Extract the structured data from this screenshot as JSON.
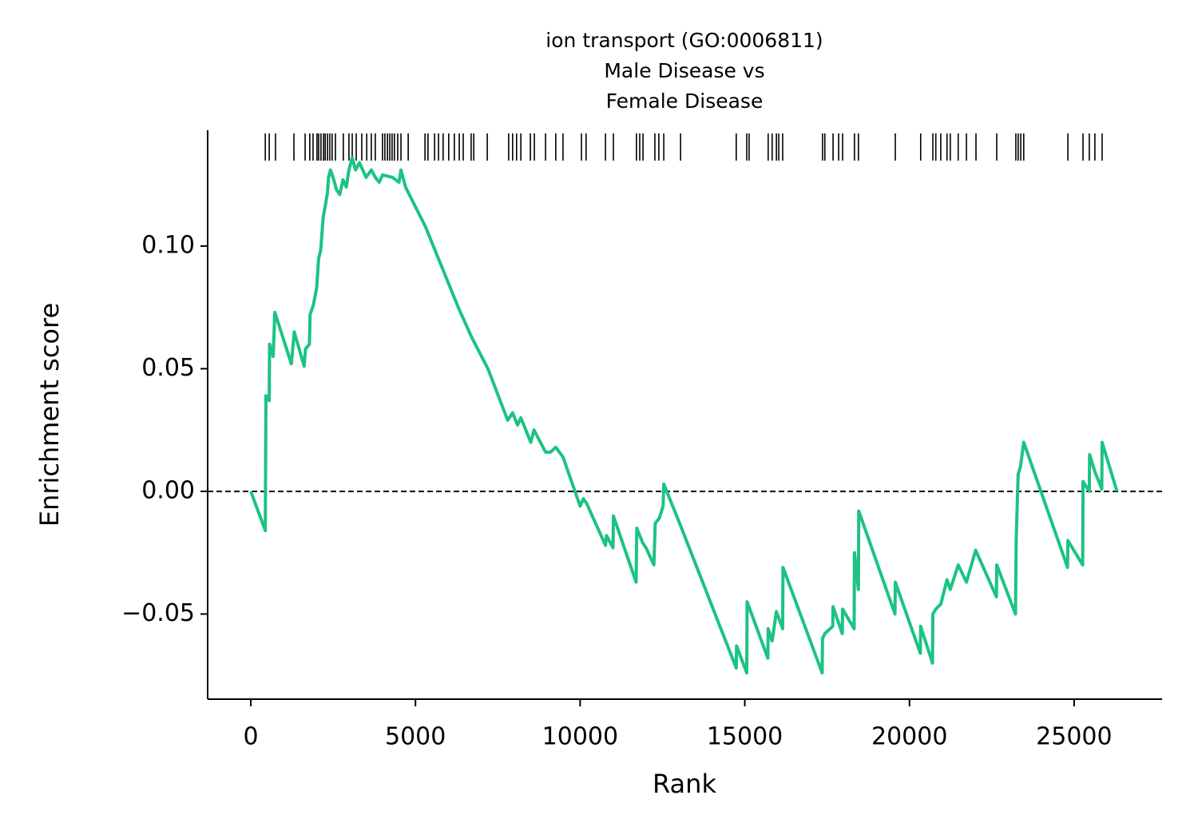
{
  "chart_data": {
    "type": "line",
    "title": [
      "ion transport (GO:0006811)",
      "Male Disease vs",
      "Female Disease"
    ],
    "xlabel": "Rank",
    "ylabel": "Enrichment score",
    "color": "#1cc383",
    "hit_color": "#000000",
    "x": [
      0,
      440,
      450,
      460,
      560,
      570,
      680,
      730,
      1230,
      1320,
      1620,
      1660,
      1780,
      1800,
      1900,
      2000,
      2060,
      2120,
      2200,
      2270,
      2330,
      2360,
      2420,
      2520,
      2600,
      2700,
      2800,
      2900,
      2980,
      3080,
      3180,
      3300,
      3500,
      3660,
      3780,
      3900,
      4000,
      4300,
      4500,
      4560,
      4700,
      5300,
      6300,
      6700,
      7200,
      7800,
      7950,
      8100,
      8200,
      8500,
      8600,
      8950,
      9100,
      9260,
      9480,
      10000,
      10100,
      10200,
      10770,
      10800,
      11000,
      11010,
      11700,
      11720,
      11900,
      12000,
      12240,
      12280,
      12400,
      12520,
      12540,
      13050,
      14740,
      14750,
      15060,
      15070,
      15700,
      15710,
      15830,
      15960,
      16150,
      16160,
      17350,
      17360,
      17430,
      17670,
      17680,
      17960,
      17970,
      18320,
      18330,
      18450,
      18460,
      19560,
      19570,
      20330,
      20340,
      20700,
      20710,
      20800,
      20950,
      21140,
      21240,
      21480,
      21730,
      22010,
      22640,
      22650,
      23220,
      23240,
      23300,
      23370,
      23470,
      24800,
      24810,
      25260,
      25270,
      25460,
      25470,
      25630,
      25840,
      25850,
      26300
    ],
    "values": [
      0,
      -0.016,
      0.012,
      0.039,
      0.037,
      0.06,
      0.055,
      0.073,
      0.052,
      0.065,
      0.051,
      0.058,
      0.06,
      0.072,
      0.076,
      0.083,
      0.095,
      0.098,
      0.112,
      0.117,
      0.122,
      0.128,
      0.131,
      0.127,
      0.123,
      0.121,
      0.127,
      0.124,
      0.131,
      0.136,
      0.131,
      0.134,
      0.128,
      0.131,
      0.128,
      0.126,
      0.129,
      0.128,
      0.126,
      0.131,
      0.124,
      0.108,
      0.075,
      0.063,
      0.05,
      0.029,
      0.032,
      0.027,
      0.03,
      0.02,
      0.025,
      0.016,
      0.016,
      0.018,
      0.014,
      -0.006,
      -0.003,
      -0.005,
      -0.022,
      -0.018,
      -0.023,
      -0.01,
      -0.037,
      -0.015,
      -0.021,
      -0.023,
      -0.03,
      -0.013,
      -0.011,
      -0.006,
      0.003,
      -0.014,
      -0.072,
      -0.063,
      -0.074,
      -0.045,
      -0.068,
      -0.056,
      -0.061,
      -0.049,
      -0.056,
      -0.031,
      -0.074,
      -0.06,
      -0.058,
      -0.055,
      -0.047,
      -0.058,
      -0.048,
      -0.056,
      -0.025,
      -0.04,
      -0.008,
      -0.05,
      -0.037,
      -0.066,
      -0.055,
      -0.07,
      -0.05,
      -0.048,
      -0.046,
      -0.036,
      -0.04,
      -0.03,
      -0.037,
      -0.024,
      -0.043,
      -0.03,
      -0.05,
      -0.02,
      0.007,
      0.01,
      0.02,
      -0.031,
      -0.02,
      -0.03,
      0.004,
      0.0,
      0.015,
      0.008,
      0.001,
      0.02,
      0.0
    ],
    "hits": [
      440,
      560,
      750,
      1310,
      1650,
      1790,
      1890,
      2010,
      2060,
      2130,
      2210,
      2260,
      2330,
      2400,
      2470,
      2570,
      2810,
      2980,
      3080,
      3200,
      3370,
      3520,
      3660,
      3780,
      4000,
      4070,
      4150,
      4220,
      4290,
      4360,
      4460,
      4560,
      4780,
      5290,
      5380,
      5580,
      5700,
      5840,
      6010,
      6180,
      6330,
      6450,
      6690,
      6770,
      7180,
      7830,
      7950,
      8070,
      8200,
      8490,
      8610,
      8950,
      9260,
      9480,
      10040,
      10180,
      10770,
      11010,
      11710,
      11810,
      11910,
      12270,
      12390,
      12540,
      13050,
      14740,
      15060,
      15130,
      15710,
      15830,
      15960,
      16030,
      16150,
      17360,
      17430,
      17680,
      17850,
      17970,
      18330,
      18450,
      19570,
      20340,
      20710,
      20800,
      20950,
      21140,
      21240,
      21480,
      21730,
      22020,
      22650,
      23230,
      23300,
      23380,
      23470,
      24810,
      25270,
      25460,
      25630,
      25850
    ],
    "hline": 0,
    "xlim": [
      -1310,
      27670
    ],
    "ylim": [
      -0.0847,
      0.1472
    ],
    "xticks": [
      0,
      5000,
      10000,
      15000,
      20000,
      25000
    ],
    "yticks": [
      {
        "value": -0.05,
        "label": "−0.05"
      },
      {
        "value": 0,
        "label": "0.00"
      },
      {
        "value": 0.05,
        "label": "0.05"
      },
      {
        "value": 0.1,
        "label": "0.10"
      }
    ]
  }
}
